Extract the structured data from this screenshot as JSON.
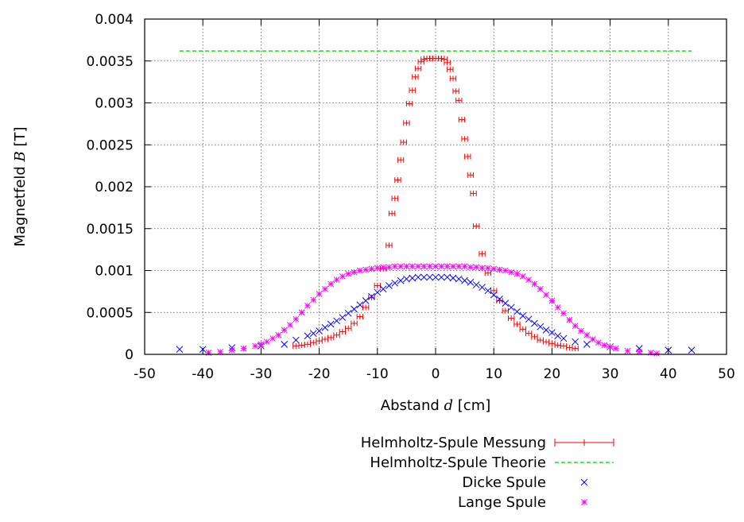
{
  "chart_data": {
    "type": "scatter",
    "title": "",
    "xlabel_parts": {
      "pre": "Abstand ",
      "var": "d",
      "post": " [cm]"
    },
    "ylabel_parts": {
      "pre": "Magnetfeld ",
      "var": "B",
      "post": " [T]"
    },
    "xlim": [
      -50,
      50
    ],
    "ylim": [
      0,
      0.004
    ],
    "xticks": [
      -50,
      -40,
      -30,
      -20,
      -10,
      0,
      10,
      20,
      30,
      40,
      50
    ],
    "yticks": [
      0,
      0.0005,
      0.001,
      0.0015,
      0.002,
      0.0025,
      0.003,
      0.0035,
      0.004
    ],
    "xtick_labels": [
      "-50",
      "-40",
      "-30",
      "-20",
      "-10",
      "0",
      "10",
      "20",
      "30",
      "40",
      "50"
    ],
    "ytick_labels": [
      "0",
      "0.0005",
      "0.001",
      "0.0015",
      "0.002",
      "0.0025",
      "0.003",
      "0.0035",
      "0.004"
    ],
    "grid": true,
    "legend_position": "below",
    "series": [
      {
        "name": "Helmholtz-Spule Messung",
        "color": "#ff0000",
        "marker": "plus-errorbar",
        "xerr": 0.5,
        "x": [
          -24,
          -23,
          -22,
          -21,
          -20,
          -19,
          -18,
          -17,
          -16,
          -15,
          -14,
          -13,
          -12,
          -11,
          -10,
          -9,
          -8,
          -7.5,
          -7,
          -6.5,
          -6,
          -5.5,
          -5,
          -4.5,
          -4,
          -3.5,
          -3,
          -2.5,
          -2,
          -1.5,
          -1,
          -0.5,
          0,
          0.5,
          1,
          1.5,
          2,
          2.5,
          3,
          3.5,
          4,
          4.5,
          5,
          5.5,
          6,
          6.5,
          7,
          8,
          9,
          10,
          11,
          12,
          13,
          14,
          15,
          16,
          17,
          18,
          19,
          20,
          21,
          22,
          23,
          24
        ],
        "y": [
          0.0001,
          0.00011,
          0.00012,
          0.00014,
          0.00016,
          0.00018,
          0.0002,
          0.00023,
          0.00027,
          0.00031,
          0.00037,
          0.00045,
          0.00056,
          0.00068,
          0.00082,
          0.00102,
          0.0013,
          0.00168,
          0.00186,
          0.00208,
          0.00232,
          0.00253,
          0.00276,
          0.00299,
          0.00315,
          0.00331,
          0.00341,
          0.00349,
          0.00352,
          0.00353,
          0.00353,
          0.00353,
          0.00353,
          0.00353,
          0.00353,
          0.00352,
          0.00348,
          0.0034,
          0.00329,
          0.00314,
          0.00303,
          0.0028,
          0.00257,
          0.00236,
          0.00214,
          0.00192,
          0.00153,
          0.0012,
          0.00097,
          0.00076,
          0.00064,
          0.00052,
          0.00043,
          0.00036,
          0.0003,
          0.00025,
          0.00021,
          0.00017,
          0.00015,
          0.00013,
          0.00011,
          0.0001,
          8e-05,
          7e-05
        ]
      },
      {
        "name": "Helmholtz-Spule Theorie",
        "color": "#00cc00",
        "marker": "dashed-line",
        "x": [
          -44,
          44
        ],
        "y": [
          0.00362,
          0.00362
        ]
      },
      {
        "name": "Dicke Spule",
        "color": "#0000ff",
        "marker": "x",
        "x": [
          -44,
          -40,
          -35,
          -30,
          -26,
          -24,
          -22,
          -21,
          -20,
          -19,
          -18,
          -17,
          -16,
          -15,
          -14,
          -13,
          -12,
          -11,
          -10,
          -9,
          -8,
          -7,
          -6,
          -5,
          -4,
          -3,
          -2,
          -1,
          0,
          1,
          2,
          3,
          4,
          5,
          6,
          7,
          8,
          9,
          10,
          11,
          12,
          13,
          14,
          15,
          16,
          17,
          18,
          19,
          20,
          21,
          22,
          24,
          26,
          30,
          35,
          40,
          44
        ],
        "y": [
          6e-05,
          6e-05,
          8e-05,
          0.0001,
          0.00012,
          0.00017,
          0.00022,
          0.00025,
          0.00028,
          0.00032,
          0.00036,
          0.0004,
          0.00044,
          0.00049,
          0.00054,
          0.00059,
          0.00064,
          0.00069,
          0.00074,
          0.00078,
          0.00082,
          0.00085,
          0.00088,
          0.0009,
          0.00091,
          0.00092,
          0.00092,
          0.00092,
          0.00092,
          0.00092,
          0.00092,
          0.00091,
          0.0009,
          0.00088,
          0.00086,
          0.00083,
          0.0008,
          0.00076,
          0.00071,
          0.00066,
          0.00061,
          0.00056,
          0.00051,
          0.00046,
          0.00042,
          0.00037,
          0.00033,
          0.00029,
          0.00026,
          0.00022,
          0.00019,
          0.00015,
          0.00012,
          9e-05,
          7e-05,
          5e-05,
          5e-05
        ]
      },
      {
        "name": "Lange Spule",
        "color": "#ff00ff",
        "marker": "star",
        "x": [
          -39,
          -37,
          -35,
          -33,
          -31,
          -30,
          -29,
          -28,
          -27,
          -26,
          -25,
          -24,
          -23,
          -22,
          -21,
          -20,
          -19,
          -18,
          -17,
          -16,
          -15,
          -14,
          -13,
          -12,
          -11,
          -10,
          -9,
          -8,
          -7,
          -6,
          -5,
          -4,
          -3,
          -2,
          -1,
          0,
          1,
          2,
          3,
          4,
          5,
          6,
          7,
          8,
          9,
          10,
          11,
          12,
          13,
          14,
          15,
          16,
          17,
          18,
          19,
          20,
          21,
          22,
          23,
          24,
          25,
          26,
          27,
          28,
          29,
          30,
          31,
          33,
          35,
          37,
          38
        ],
        "y": [
          2e-05,
          3e-05,
          5e-05,
          7e-05,
          0.0001,
          0.00012,
          0.00015,
          0.00019,
          0.00023,
          0.00029,
          0.00035,
          0.00042,
          0.0005,
          0.00058,
          0.00065,
          0.00072,
          0.00078,
          0.00084,
          0.00089,
          0.00093,
          0.00096,
          0.00098,
          0.001,
          0.00101,
          0.00102,
          0.00103,
          0.00104,
          0.00104,
          0.00105,
          0.00105,
          0.00105,
          0.00105,
          0.00105,
          0.00105,
          0.00105,
          0.00105,
          0.00105,
          0.00105,
          0.00105,
          0.00105,
          0.00105,
          0.00104,
          0.00104,
          0.00103,
          0.00103,
          0.00102,
          0.00101,
          0.001,
          0.00098,
          0.00096,
          0.00093,
          0.00089,
          0.00084,
          0.00078,
          0.00071,
          0.00064,
          0.00056,
          0.00049,
          0.00041,
          0.00034,
          0.00028,
          0.00023,
          0.00018,
          0.00014,
          0.00011,
          9e-05,
          7e-05,
          4e-05,
          3e-05,
          2e-05,
          1e-05
        ]
      }
    ]
  }
}
